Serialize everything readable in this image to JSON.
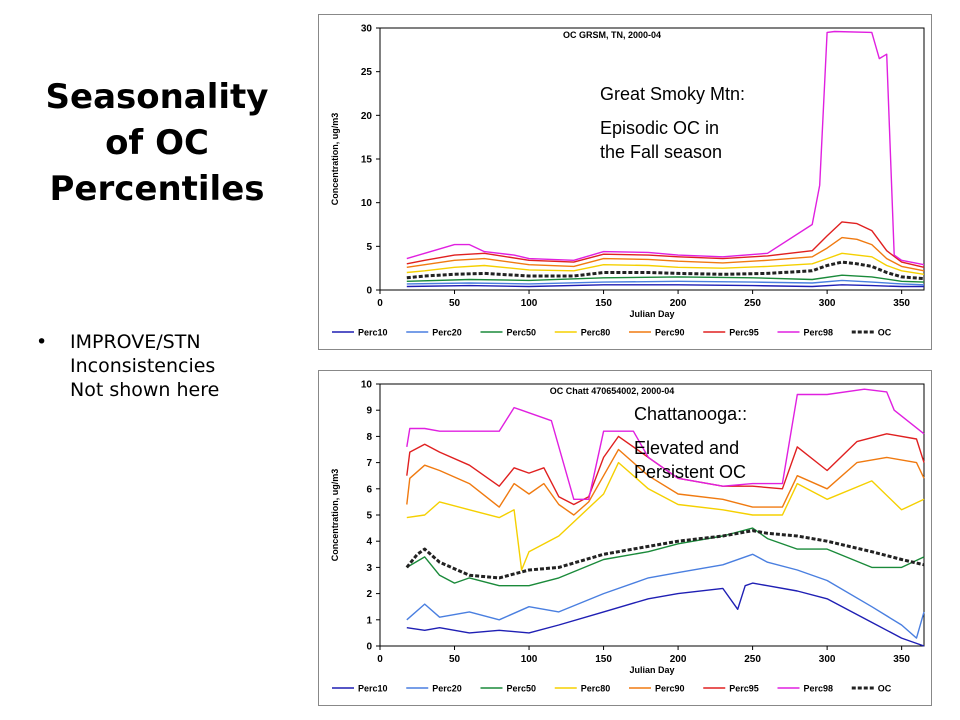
{
  "slide": {
    "title_lines": [
      "Seasonality",
      "of OC",
      "Percentiles"
    ],
    "bullet_symbol": "•",
    "bullet_text": "IMPROVE/STN\nInconsistencies\nNot shown here"
  },
  "annotations": {
    "top": {
      "lines": [
        "Great Smoky Mtn:",
        "Episodic OC in",
        "the Fall season"
      ]
    },
    "bottom": {
      "lines": [
        "Chattanooga::",
        "Elevated and",
        "Persistent OC"
      ]
    }
  },
  "chart_data": [
    {
      "type": "line",
      "title": "OC GRSM, TN, 2000-04",
      "xlabel": "Julian Day",
      "ylabel": "Concentration, ug/m3",
      "xlim": [
        0,
        365
      ],
      "ylim": [
        0,
        30
      ],
      "xticks": [
        0,
        50,
        100,
        150,
        200,
        250,
        300,
        350
      ],
      "yticks": [
        0,
        5,
        10,
        15,
        20,
        25,
        30
      ],
      "legend_position": "bottom",
      "grid": false,
      "series": [
        {
          "name": "Perc10",
          "color": "#1f1fb4",
          "x": [
            18,
            60,
            100,
            150,
            200,
            250,
            290,
            310,
            330,
            350,
            365
          ],
          "y": [
            0.4,
            0.5,
            0.4,
            0.6,
            0.6,
            0.5,
            0.4,
            0.6,
            0.5,
            0.4,
            0.4
          ]
        },
        {
          "name": "Perc20",
          "color": "#4a7fe0",
          "x": [
            18,
            60,
            100,
            150,
            200,
            250,
            290,
            310,
            330,
            350,
            365
          ],
          "y": [
            0.7,
            0.8,
            0.7,
            0.9,
            1.0,
            0.9,
            0.8,
            1.1,
            0.9,
            0.7,
            0.6
          ]
        },
        {
          "name": "Perc50",
          "color": "#1a8a3a",
          "x": [
            18,
            60,
            100,
            150,
            200,
            250,
            290,
            310,
            330,
            350,
            365
          ],
          "y": [
            1.0,
            1.2,
            1.1,
            1.4,
            1.5,
            1.4,
            1.2,
            1.7,
            1.5,
            1.0,
            0.9
          ]
        },
        {
          "name": "Perc80",
          "color": "#f5d000",
          "x": [
            18,
            30,
            50,
            70,
            100,
            130,
            150,
            180,
            200,
            230,
            260,
            290,
            300,
            310,
            320,
            330,
            340,
            350,
            365
          ],
          "y": [
            2.0,
            2.2,
            2.6,
            2.8,
            2.3,
            2.2,
            2.9,
            2.8,
            2.6,
            2.5,
            2.7,
            3.0,
            3.6,
            4.2,
            4.0,
            3.8,
            2.8,
            2.2,
            1.8
          ]
        },
        {
          "name": "Perc90",
          "color": "#f07a10",
          "x": [
            18,
            30,
            50,
            70,
            100,
            130,
            150,
            180,
            200,
            230,
            260,
            290,
            300,
            310,
            320,
            330,
            340,
            350,
            365
          ],
          "y": [
            2.6,
            2.9,
            3.4,
            3.6,
            2.9,
            2.7,
            3.6,
            3.5,
            3.3,
            3.1,
            3.4,
            3.8,
            4.8,
            6.0,
            5.8,
            5.2,
            3.6,
            2.7,
            2.2
          ]
        },
        {
          "name": "Perc95",
          "color": "#e02020",
          "x": [
            18,
            30,
            50,
            70,
            100,
            130,
            150,
            180,
            200,
            230,
            260,
            290,
            300,
            310,
            320,
            330,
            340,
            350,
            365
          ],
          "y": [
            3.0,
            3.4,
            4.0,
            4.2,
            3.4,
            3.2,
            4.1,
            4.0,
            3.8,
            3.6,
            3.9,
            4.5,
            6.2,
            7.8,
            7.6,
            6.8,
            4.5,
            3.2,
            2.6
          ]
        },
        {
          "name": "Perc98",
          "color": "#e020e0",
          "x": [
            18,
            30,
            50,
            60,
            70,
            90,
            100,
            130,
            150,
            180,
            200,
            230,
            260,
            290,
            295,
            300,
            305,
            330,
            335,
            340,
            345,
            350,
            365
          ],
          "y": [
            3.6,
            4.2,
            5.2,
            5.2,
            4.4,
            4.0,
            3.6,
            3.4,
            4.4,
            4.3,
            4.0,
            3.8,
            4.2,
            7.5,
            12.0,
            29.5,
            29.6,
            29.5,
            26.5,
            27.0,
            4.0,
            3.4,
            2.9
          ]
        },
        {
          "name": "OC",
          "color": "#222222",
          "x": [
            18,
            30,
            50,
            70,
            100,
            130,
            150,
            180,
            200,
            230,
            260,
            290,
            300,
            310,
            320,
            330,
            340,
            350,
            365
          ],
          "y": [
            1.4,
            1.6,
            1.8,
            1.9,
            1.6,
            1.6,
            2.0,
            2.0,
            1.9,
            1.8,
            1.9,
            2.2,
            2.8,
            3.2,
            3.0,
            2.7,
            2.0,
            1.5,
            1.3
          ]
        }
      ]
    },
    {
      "type": "line",
      "title": "OC Chatt 470654002, 2000-04",
      "xlabel": "Julian Day",
      "ylabel": "Concentration, ug/m3",
      "xlim": [
        0,
        365
      ],
      "ylim": [
        0,
        10
      ],
      "xticks": [
        0,
        50,
        100,
        150,
        200,
        250,
        300,
        350
      ],
      "yticks": [
        0,
        1,
        2,
        3,
        4,
        5,
        6,
        7,
        8,
        9,
        10
      ],
      "legend_position": "bottom",
      "grid": false,
      "series": [
        {
          "name": "Perc10",
          "color": "#1f1fb4",
          "x": [
            18,
            30,
            40,
            60,
            80,
            100,
            120,
            150,
            180,
            200,
            230,
            240,
            245,
            250,
            260,
            280,
            300,
            330,
            350,
            365
          ],
          "y": [
            0.7,
            0.6,
            0.7,
            0.5,
            0.6,
            0.5,
            0.8,
            1.3,
            1.8,
            2.0,
            2.2,
            1.4,
            2.3,
            2.4,
            2.3,
            2.1,
            1.8,
            0.9,
            0.3,
            0.0
          ]
        },
        {
          "name": "Perc20",
          "color": "#4a7fe0",
          "x": [
            18,
            30,
            40,
            60,
            80,
            100,
            120,
            150,
            180,
            200,
            230,
            250,
            260,
            280,
            300,
            330,
            350,
            360,
            365
          ],
          "y": [
            1.0,
            1.6,
            1.1,
            1.3,
            1.0,
            1.5,
            1.3,
            2.0,
            2.6,
            2.8,
            3.1,
            3.5,
            3.2,
            2.9,
            2.5,
            1.5,
            0.8,
            0.3,
            1.3
          ]
        },
        {
          "name": "Perc50",
          "color": "#1a8a3a",
          "x": [
            18,
            30,
            40,
            50,
            60,
            80,
            100,
            120,
            150,
            180,
            200,
            230,
            250,
            260,
            280,
            300,
            330,
            350,
            365
          ],
          "y": [
            3.0,
            3.4,
            2.7,
            2.4,
            2.6,
            2.3,
            2.3,
            2.6,
            3.3,
            3.6,
            3.9,
            4.2,
            4.5,
            4.1,
            3.7,
            3.7,
            3.0,
            3.0,
            3.4
          ]
        },
        {
          "name": "Perc80",
          "color": "#f5d000",
          "x": [
            18,
            30,
            40,
            60,
            80,
            90,
            95,
            100,
            120,
            150,
            160,
            180,
            200,
            230,
            250,
            270,
            280,
            300,
            330,
            350,
            365
          ],
          "y": [
            4.9,
            5.0,
            5.5,
            5.2,
            4.9,
            5.2,
            2.9,
            3.6,
            4.2,
            5.8,
            7.0,
            6.0,
            5.4,
            5.2,
            5.0,
            5.0,
            6.2,
            5.6,
            6.3,
            5.2,
            5.6
          ]
        },
        {
          "name": "Perc90",
          "color": "#f07a10",
          "x": [
            18,
            20,
            30,
            40,
            60,
            80,
            90,
            100,
            110,
            120,
            130,
            140,
            150,
            160,
            180,
            200,
            230,
            250,
            270,
            280,
            300,
            320,
            340,
            360,
            365
          ],
          "y": [
            5.4,
            6.4,
            6.9,
            6.7,
            6.2,
            5.3,
            6.2,
            5.8,
            6.2,
            5.4,
            5.0,
            5.5,
            6.5,
            7.5,
            6.5,
            5.8,
            5.6,
            5.3,
            5.3,
            6.5,
            6.0,
            7.0,
            7.2,
            7.0,
            6.4
          ]
        },
        {
          "name": "Perc95",
          "color": "#e02020",
          "x": [
            18,
            20,
            30,
            40,
            60,
            80,
            90,
            100,
            110,
            120,
            130,
            140,
            150,
            160,
            180,
            200,
            230,
            250,
            270,
            280,
            300,
            320,
            340,
            360,
            365
          ],
          "y": [
            6.5,
            7.4,
            7.7,
            7.4,
            6.9,
            6.1,
            6.8,
            6.6,
            6.8,
            5.7,
            5.4,
            5.7,
            7.2,
            8.0,
            7.2,
            6.4,
            6.1,
            6.1,
            6.0,
            7.6,
            6.7,
            7.8,
            8.1,
            7.9,
            7.0
          ]
        },
        {
          "name": "Perc98",
          "color": "#e020e0",
          "x": [
            18,
            20,
            30,
            40,
            80,
            90,
            95,
            100,
            115,
            130,
            140,
            150,
            170,
            180,
            200,
            230,
            250,
            270,
            280,
            300,
            325,
            340,
            345,
            365
          ],
          "y": [
            7.6,
            8.3,
            8.3,
            8.2,
            8.2,
            9.1,
            9.0,
            8.9,
            8.6,
            5.6,
            5.6,
            8.2,
            8.2,
            7.2,
            6.4,
            6.1,
            6.2,
            6.2,
            9.6,
            9.6,
            9.8,
            9.7,
            9.0,
            8.1
          ]
        },
        {
          "name": "OC",
          "color": "#222222",
          "x": [
            18,
            25,
            30,
            40,
            60,
            80,
            100,
            120,
            150,
            180,
            200,
            230,
            250,
            260,
            280,
            300,
            330,
            350,
            365
          ],
          "y": [
            3.0,
            3.5,
            3.7,
            3.2,
            2.7,
            2.6,
            2.9,
            3.0,
            3.5,
            3.8,
            4.0,
            4.2,
            4.4,
            4.3,
            4.2,
            4.0,
            3.6,
            3.3,
            3.1
          ]
        }
      ]
    }
  ]
}
